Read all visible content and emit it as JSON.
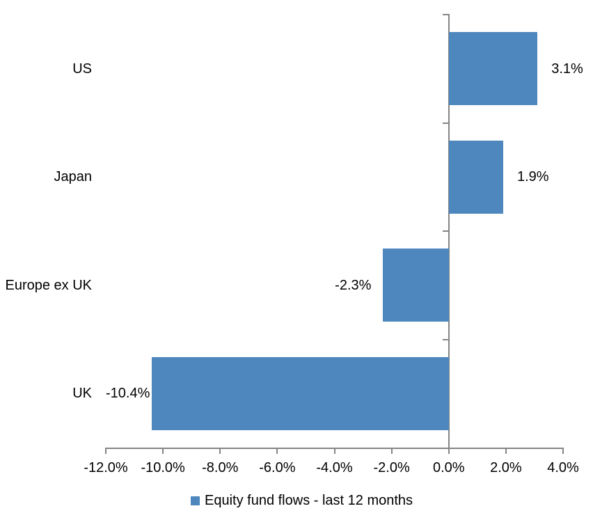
{
  "chart_data": {
    "type": "bar",
    "orientation": "horizontal",
    "title": "",
    "categories": [
      "US",
      "Japan",
      "Europe ex UK",
      "UK"
    ],
    "values": [
      3.1,
      1.9,
      -2.3,
      -10.4
    ],
    "value_labels": [
      "3.1%",
      "1.9%",
      "-2.3%",
      "-10.4%"
    ],
    "series_name": "Equity fund flows - last 12 months",
    "xlim": [
      -12,
      4
    ],
    "x_tick_step": 2,
    "x_tick_labels": [
      "-12.0%",
      "-10.0%",
      "-8.0%",
      "-6.0%",
      "-4.0%",
      "-2.0%",
      "0.0%",
      "2.0%",
      "4.0%"
    ],
    "grid": false,
    "legend_position": "bottom",
    "bar_color": "#4D87BD",
    "axis_color": "#848484",
    "text_color": "#000000"
  }
}
